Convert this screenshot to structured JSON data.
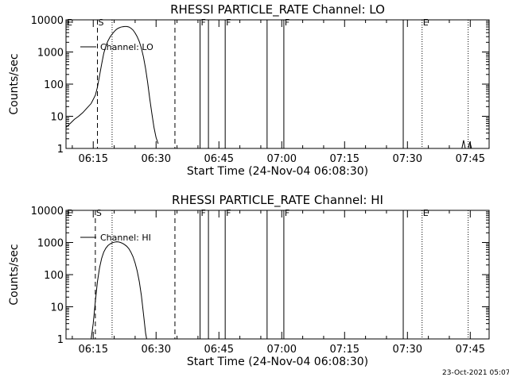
{
  "footer": "23-Oct-2021 05:07",
  "chart_data": [
    {
      "type": "line",
      "title": "RHESSI PARTICLE_RATE Channel: LO",
      "xlabel": "Start Time (24-Nov-04 06:08:30)",
      "ylabel": "Counts/sec",
      "yscale": "log",
      "ylim": [
        1,
        10000
      ],
      "xlim": [
        "06:08:30",
        "07:49:30"
      ],
      "yticks": [
        1,
        10,
        100,
        1000,
        10000
      ],
      "ytick_labels": [
        "1",
        "10",
        "100",
        "1000",
        "10000"
      ],
      "xticks": [
        "06:15",
        "06:30",
        "06:45",
        "07:00",
        "07:15",
        "07:30",
        "07:45"
      ],
      "legend": {
        "label": "Channel: LO",
        "placement": "top-left"
      },
      "series": [
        {
          "name": "Channel: LO",
          "segments": [
            [
              [
                "06:08:30",
                4.5
              ],
              [
                "06:09:30",
                6
              ],
              [
                "06:10:30",
                8
              ],
              [
                "06:11:30",
                10
              ],
              [
                "06:12:30",
                13
              ],
              [
                "06:13:30",
                18
              ],
              [
                "06:14:30",
                25
              ],
              [
                "06:15:30",
                45
              ],
              [
                "06:16:00",
                80
              ],
              [
                "06:16:30",
                180
              ],
              [
                "06:17:00",
                420
              ],
              [
                "06:17:30",
                900
              ],
              [
                "06:18:00",
                1500
              ],
              [
                "06:18:30",
                2200
              ],
              [
                "06:19:00",
                2900
              ],
              [
                "06:19:30",
                3600
              ],
              [
                "06:20:00",
                4300
              ],
              [
                "06:20:30",
                5000
              ],
              [
                "06:21:00",
                5500
              ],
              [
                "06:21:30",
                5900
              ],
              [
                "06:22:00",
                6100
              ],
              [
                "06:22:30",
                6200
              ],
              [
                "06:23:00",
                6200
              ],
              [
                "06:23:30",
                6000
              ],
              [
                "06:24:00",
                5500
              ],
              [
                "06:24:30",
                4800
              ],
              [
                "06:25:00",
                3900
              ],
              [
                "06:25:30",
                3000
              ],
              [
                "06:26:00",
                2100
              ],
              [
                "06:26:30",
                1300
              ],
              [
                "06:27:00",
                700
              ],
              [
                "06:27:30",
                300
              ],
              [
                "06:28:00",
                110
              ],
              [
                "06:28:30",
                35
              ],
              [
                "06:29:00",
                12
              ],
              [
                "06:29:30",
                4.5
              ],
              [
                "06:30:00",
                2.2
              ],
              [
                "06:30:30",
                1.4
              ]
            ],
            [
              [
                "07:43:00",
                1
              ],
              [
                "07:43:24",
                1.8
              ],
              [
                "07:43:48",
                1
              ],
              [
                "07:44:30",
                1
              ],
              [
                "07:44:54",
                1.6
              ],
              [
                "07:45:18",
                1
              ]
            ]
          ]
        }
      ],
      "events": [
        {
          "label": "E",
          "time": "06:08:30",
          "style": "solid"
        },
        {
          "label": "S",
          "time": "06:16:00",
          "style": "dashed"
        },
        {
          "label": "",
          "time": "06:19:30",
          "style": "dotted"
        },
        {
          "label": "",
          "time": "06:34:30",
          "style": "dashed"
        },
        {
          "label": "F",
          "time": "06:40:30",
          "style": "solid"
        },
        {
          "label": "",
          "time": "06:42:30",
          "style": "solid"
        },
        {
          "label": "F",
          "time": "06:46:30",
          "style": "solid"
        },
        {
          "label": "",
          "time": "06:56:30",
          "style": "solid"
        },
        {
          "label": "F",
          "time": "07:00:30",
          "style": "solid"
        },
        {
          "label": "",
          "time": "07:29:00",
          "style": "solid"
        },
        {
          "label": "E",
          "time": "07:33:30",
          "style": "dotted"
        },
        {
          "label": "",
          "time": "07:44:30",
          "style": "dotted"
        }
      ]
    },
    {
      "type": "line",
      "title": "RHESSI PARTICLE_RATE Channel: HI",
      "xlabel": "Start Time (24-Nov-04 06:08:30)",
      "ylabel": "Counts/sec",
      "yscale": "log",
      "ylim": [
        1,
        10000
      ],
      "xlim": [
        "06:08:30",
        "07:49:30"
      ],
      "yticks": [
        1,
        10,
        100,
        1000,
        10000
      ],
      "ytick_labels": [
        "1",
        "10",
        "100",
        "1000",
        "10000"
      ],
      "xticks": [
        "06:15",
        "06:30",
        "06:45",
        "07:00",
        "07:15",
        "07:30",
        "07:45"
      ],
      "legend": {
        "label": "Channel: HI",
        "placement": "top-left"
      },
      "series": [
        {
          "name": "Channel: HI",
          "segments": [
            [
              [
                "06:14:30",
                1
              ],
              [
                "06:15:00",
                3
              ],
              [
                "06:15:30",
                15
              ],
              [
                "06:16:00",
                60
              ],
              [
                "06:16:30",
                160
              ],
              [
                "06:17:00",
                320
              ],
              [
                "06:17:30",
                500
              ],
              [
                "06:18:00",
                660
              ],
              [
                "06:18:30",
                800
              ],
              [
                "06:19:00",
                900
              ],
              [
                "06:19:30",
                980
              ],
              [
                "06:20:00",
                1020
              ],
              [
                "06:20:30",
                1050
              ],
              [
                "06:21:00",
                1040
              ],
              [
                "06:21:30",
                1000
              ],
              [
                "06:22:00",
                940
              ],
              [
                "06:22:30",
                860
              ],
              [
                "06:23:00",
                760
              ],
              [
                "06:23:30",
                640
              ],
              [
                "06:24:00",
                500
              ],
              [
                "06:24:30",
                360
              ],
              [
                "06:25:00",
                230
              ],
              [
                "06:25:30",
                130
              ],
              [
                "06:26:00",
                60
              ],
              [
                "06:26:30",
                22
              ],
              [
                "06:27:00",
                6
              ],
              [
                "06:27:30",
                1.5
              ],
              [
                "06:27:45",
                1
              ]
            ]
          ]
        }
      ],
      "events": [
        {
          "label": "E",
          "time": "06:08:30",
          "style": "solid"
        },
        {
          "label": "S",
          "time": "06:15:30",
          "style": "dashed"
        },
        {
          "label": "",
          "time": "06:19:30",
          "style": "dotted"
        },
        {
          "label": "",
          "time": "06:34:30",
          "style": "dashed"
        },
        {
          "label": "F",
          "time": "06:40:30",
          "style": "solid"
        },
        {
          "label": "",
          "time": "06:42:30",
          "style": "solid"
        },
        {
          "label": "F",
          "time": "06:46:30",
          "style": "solid"
        },
        {
          "label": "",
          "time": "06:56:30",
          "style": "solid"
        },
        {
          "label": "F",
          "time": "07:00:30",
          "style": "solid"
        },
        {
          "label": "",
          "time": "07:29:00",
          "style": "solid"
        },
        {
          "label": "E",
          "time": "07:33:30",
          "style": "dotted"
        },
        {
          "label": "",
          "time": "07:44:30",
          "style": "dotted"
        }
      ]
    }
  ]
}
